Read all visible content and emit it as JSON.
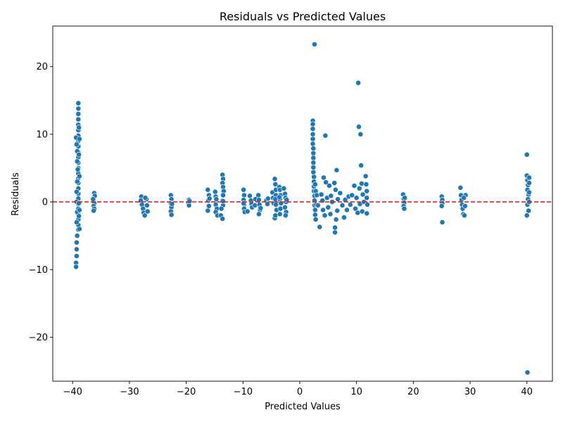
{
  "chart_data": {
    "type": "scatter",
    "title": "Residuals vs Predicted Values",
    "xlabel": "Predicted Values",
    "ylabel": "Residuals",
    "xlim": [
      -43.5,
      44.5
    ],
    "ylim": [
      -26.5,
      26
    ],
    "x_ticks": [
      -40,
      -30,
      -20,
      -10,
      0,
      10,
      20,
      30,
      40
    ],
    "x_tick_labels": [
      "−40",
      "−30",
      "−20",
      "−10",
      "0",
      "10",
      "20",
      "30",
      "40"
    ],
    "y_ticks": [
      -20,
      -10,
      0,
      10,
      20
    ],
    "y_tick_labels": [
      "−20",
      "−10",
      "0",
      "10",
      "20"
    ],
    "grid": false,
    "legend": "none",
    "point_color": "#1f77b4",
    "point_edge_color": "#ffffff",
    "reference_line": {
      "y": 0,
      "color": "#d62728",
      "style": "dashed"
    },
    "series": [
      {
        "points": [
          [
            -39.0,
            14.6
          ],
          [
            -39.0,
            13.8
          ],
          [
            -39.0,
            13.0
          ],
          [
            -39.0,
            12.2
          ],
          [
            -39.0,
            11.4
          ],
          [
            -39.0,
            10.6
          ],
          [
            -39.0,
            9.8
          ],
          [
            -39.0,
            9.0
          ],
          [
            -39.0,
            8.2
          ],
          [
            -39.0,
            7.4
          ],
          [
            -39.0,
            6.6
          ],
          [
            -39.0,
            5.8
          ],
          [
            -39.0,
            5.0
          ],
          [
            -39.0,
            4.2
          ],
          [
            -39.0,
            3.5
          ],
          [
            -39.0,
            2.8
          ],
          [
            -39.0,
            2.0
          ],
          [
            -39.0,
            1.2
          ],
          [
            -39.0,
            0.5
          ],
          [
            -39.0,
            -0.3
          ],
          [
            -39.0,
            -1.0
          ],
          [
            -39.0,
            -1.8
          ],
          [
            -39.0,
            -2.6
          ],
          [
            -39.0,
            -3.4
          ],
          [
            -39.0,
            -4.1
          ],
          [
            -39.2,
            -5.0
          ],
          [
            -39.3,
            -6.0
          ],
          [
            -39.3,
            -7.0
          ],
          [
            -39.3,
            -8.0
          ],
          [
            -39.4,
            -9.0
          ],
          [
            -39.4,
            -9.6
          ],
          [
            -39.4,
            9.5
          ],
          [
            -39.3,
            8.5
          ],
          [
            -39.2,
            7.5
          ],
          [
            -39.2,
            6.0
          ],
          [
            -39.1,
            4.8
          ],
          [
            -39.2,
            3.0
          ],
          [
            -39.3,
            1.5
          ],
          [
            -39.3,
            0.0
          ],
          [
            -39.2,
            -1.5
          ],
          [
            -39.3,
            -3.0
          ],
          [
            -38.9,
            11.0
          ],
          [
            -38.8,
            9.3
          ],
          [
            -38.9,
            7.0
          ],
          [
            -38.8,
            3.8
          ],
          [
            -38.9,
            -0.2
          ],
          [
            -38.8,
            -1.2
          ],
          [
            -38.8,
            -4.0
          ],
          [
            -38.9,
            -2.1
          ],
          [
            -36.2,
            1.3
          ],
          [
            -36.2,
            0.8
          ],
          [
            -36.3,
            0.2
          ],
          [
            -36.2,
            -0.2
          ],
          [
            -36.3,
            -0.6
          ],
          [
            -36.2,
            -1.0
          ],
          [
            -36.3,
            -1.3
          ],
          [
            -36.1,
            0.9
          ],
          [
            -36.4,
            0.4
          ],
          [
            -27.9,
            0.8
          ],
          [
            -28.0,
            0.2
          ],
          [
            -27.8,
            -0.4
          ],
          [
            -27.6,
            -1.0
          ],
          [
            -27.5,
            -1.6
          ],
          [
            -27.3,
            -2.0
          ],
          [
            -27.0,
            0.4
          ],
          [
            -26.9,
            -0.5
          ],
          [
            -26.8,
            -1.4
          ],
          [
            -27.2,
            0.6
          ],
          [
            -22.7,
            1.0
          ],
          [
            -22.6,
            0.4
          ],
          [
            -22.7,
            -0.2
          ],
          [
            -22.6,
            -0.8
          ],
          [
            -22.7,
            -1.4
          ],
          [
            -22.6,
            -1.9
          ],
          [
            -22.5,
            -0.3
          ],
          [
            -19.5,
            0.3
          ],
          [
            -19.6,
            -0.1
          ],
          [
            -19.5,
            -0.5
          ],
          [
            -19.4,
            0.1
          ],
          [
            -16.2,
            1.8
          ],
          [
            -16.0,
            1.0
          ],
          [
            -16.1,
            0.2
          ],
          [
            -16.0,
            -0.6
          ],
          [
            -16.2,
            -1.3
          ],
          [
            -15.9,
            0.5
          ],
          [
            -14.9,
            1.5
          ],
          [
            -14.8,
            0.8
          ],
          [
            -14.7,
            0.2
          ],
          [
            -14.8,
            -0.4
          ],
          [
            -14.6,
            -1.0
          ],
          [
            -14.8,
            -1.5
          ],
          [
            -14.5,
            -2.0
          ],
          [
            -14.7,
            0.4
          ],
          [
            -13.6,
            4.0
          ],
          [
            -13.5,
            3.4
          ],
          [
            -13.6,
            2.8
          ],
          [
            -13.5,
            2.2
          ],
          [
            -13.4,
            1.6
          ],
          [
            -13.5,
            1.0
          ],
          [
            -13.6,
            0.2
          ],
          [
            -13.5,
            -0.5
          ],
          [
            -13.8,
            -1.0
          ],
          [
            -13.9,
            -2.0
          ],
          [
            -13.6,
            -2.5
          ],
          [
            -13.5,
            0.1
          ],
          [
            -9.9,
            1.8
          ],
          [
            -9.8,
            1.0
          ],
          [
            -9.9,
            0.3
          ],
          [
            -9.8,
            -0.4
          ],
          [
            -9.8,
            -1.0
          ],
          [
            -9.7,
            -1.5
          ],
          [
            -9.9,
            -0.2
          ],
          [
            -9.2,
            -1.4
          ],
          [
            -8.8,
            0.9
          ],
          [
            -8.6,
            0.2
          ],
          [
            -8.5,
            -0.3
          ],
          [
            -8.4,
            -0.8
          ],
          [
            -7.9,
            -0.5
          ],
          [
            -7.8,
            0.4
          ],
          [
            -7.3,
            1.0
          ],
          [
            -7.2,
            0.3
          ],
          [
            -7.1,
            -0.4
          ],
          [
            -7.0,
            -1.2
          ],
          [
            -7.2,
            -1.8
          ],
          [
            -6.9,
            -0.9
          ],
          [
            -5.9,
            0.2
          ],
          [
            -5.7,
            -0.3
          ],
          [
            -5.6,
            0.5
          ],
          [
            -4.8,
            1.4
          ],
          [
            -4.7,
            0.6
          ],
          [
            -4.6,
            -0.2
          ],
          [
            -4.4,
            -2.4
          ],
          [
            -4.4,
            3.4
          ],
          [
            -4.3,
            2.6
          ],
          [
            -4.2,
            1.8
          ],
          [
            -4.2,
            1.0
          ],
          [
            -4.3,
            0.4
          ],
          [
            -4.2,
            -0.4
          ],
          [
            -4.1,
            -1.2
          ],
          [
            -4.3,
            -2.0
          ],
          [
            -3.6,
            2.2
          ],
          [
            -3.5,
            1.8
          ],
          [
            -3.4,
            1.0
          ],
          [
            -3.5,
            0.4
          ],
          [
            -3.3,
            -0.2
          ],
          [
            -3.4,
            -1.0
          ],
          [
            -3.5,
            -1.8
          ],
          [
            -3.6,
            0.7
          ],
          [
            -2.8,
            2.0
          ],
          [
            -2.6,
            1.2
          ],
          [
            -2.5,
            0.6
          ],
          [
            -2.4,
            0.0
          ],
          [
            -2.6,
            -0.8
          ],
          [
            -2.4,
            -1.5
          ],
          [
            -2.5,
            -2.0
          ],
          [
            -2.3,
            0.3
          ],
          [
            2.3,
            12.0
          ],
          [
            2.3,
            11.5
          ],
          [
            2.3,
            10.8
          ],
          [
            2.3,
            10.0
          ],
          [
            2.3,
            9.3
          ],
          [
            2.3,
            8.6
          ],
          [
            2.4,
            7.9
          ],
          [
            2.4,
            7.2
          ],
          [
            2.4,
            6.5
          ],
          [
            2.4,
            5.8
          ],
          [
            2.4,
            5.1
          ],
          [
            2.4,
            4.4
          ],
          [
            2.5,
            3.7
          ],
          [
            2.5,
            3.0
          ],
          [
            2.5,
            2.3
          ],
          [
            2.5,
            1.6
          ],
          [
            2.6,
            0.9
          ],
          [
            2.6,
            0.2
          ],
          [
            2.6,
            -0.5
          ],
          [
            2.7,
            -1.2
          ],
          [
            2.7,
            -1.9
          ],
          [
            2.8,
            -2.6
          ],
          [
            2.6,
            23.3
          ],
          [
            2.8,
            1.6
          ],
          [
            2.7,
            2.6
          ],
          [
            2.9,
            -0.4
          ],
          [
            3.0,
            1.0
          ],
          [
            3.2,
            -0.5
          ],
          [
            3.5,
            -3.7
          ],
          [
            3.8,
            1.1
          ],
          [
            4.0,
            0.2
          ],
          [
            4.1,
            -1.2
          ],
          [
            4.2,
            3.6
          ],
          [
            4.4,
            -2.0
          ],
          [
            4.5,
            9.8
          ],
          [
            4.6,
            2.9
          ],
          [
            4.8,
            0.6
          ],
          [
            5.0,
            -0.8
          ],
          [
            5.2,
            2.4
          ],
          [
            5.4,
            -1.8
          ],
          [
            5.5,
            0.9
          ],
          [
            5.7,
            0.0
          ],
          [
            6.1,
            2.8
          ],
          [
            6.2,
            -4.5
          ],
          [
            6.2,
            -3.8
          ],
          [
            6.3,
            1.8
          ],
          [
            6.4,
            -2.6
          ],
          [
            6.5,
            4.7
          ],
          [
            6.6,
            -1.3
          ],
          [
            6.7,
            0.4
          ],
          [
            7.1,
            1.3
          ],
          [
            7.5,
            -0.5
          ],
          [
            7.8,
            -2.3
          ],
          [
            8.0,
            0.3
          ],
          [
            8.3,
            -1.2
          ],
          [
            8.6,
            0.8
          ],
          [
            8.9,
            -0.4
          ],
          [
            9.2,
            1.0
          ],
          [
            9.6,
            2.4
          ],
          [
            9.8,
            -1.0
          ],
          [
            10.0,
            0.6
          ],
          [
            10.2,
            -1.6
          ],
          [
            10.3,
            17.6
          ],
          [
            10.4,
            11.1
          ],
          [
            10.5,
            2.0
          ],
          [
            10.6,
            -0.3
          ],
          [
            10.7,
            10.0
          ],
          [
            10.8,
            5.4
          ],
          [
            10.9,
            2.7
          ],
          [
            11.0,
            -1.4
          ],
          [
            11.1,
            1.1
          ],
          [
            11.3,
            0.0
          ],
          [
            11.6,
            3.8
          ],
          [
            11.7,
            2.6
          ],
          [
            11.8,
            1.6
          ],
          [
            11.8,
            0.6
          ],
          [
            11.9,
            -0.4
          ],
          [
            11.8,
            -1.7
          ],
          [
            18.2,
            1.1
          ],
          [
            18.3,
            0.5
          ],
          [
            18.4,
            -0.1
          ],
          [
            18.5,
            0.6
          ],
          [
            18.3,
            -0.6
          ],
          [
            18.4,
            -1.0
          ],
          [
            25.0,
            0.8
          ],
          [
            25.1,
            0.3
          ],
          [
            25.1,
            -0.2
          ],
          [
            25.0,
            -0.6
          ],
          [
            25.1,
            -3.0
          ],
          [
            28.3,
            2.1
          ],
          [
            28.4,
            1.0
          ],
          [
            28.5,
            0.3
          ],
          [
            28.6,
            -0.4
          ],
          [
            28.7,
            -1.0
          ],
          [
            28.8,
            -1.8
          ],
          [
            29.0,
            -2.0
          ],
          [
            29.2,
            1.0
          ],
          [
            29.1,
            -0.6
          ],
          [
            28.9,
            0.6
          ],
          [
            40.0,
            7.0
          ],
          [
            40.0,
            3.9
          ],
          [
            40.1,
            3.2
          ],
          [
            40.2,
            2.5
          ],
          [
            40.1,
            1.8
          ],
          [
            40.3,
            1.1
          ],
          [
            40.2,
            0.4
          ],
          [
            40.1,
            -0.4
          ],
          [
            40.0,
            -2.0
          ],
          [
            40.4,
            3.6
          ],
          [
            40.4,
            2.8
          ],
          [
            40.4,
            1.4
          ],
          [
            40.4,
            0.0
          ],
          [
            40.3,
            -1.3
          ],
          [
            40.1,
            -25.2
          ]
        ]
      }
    ]
  }
}
